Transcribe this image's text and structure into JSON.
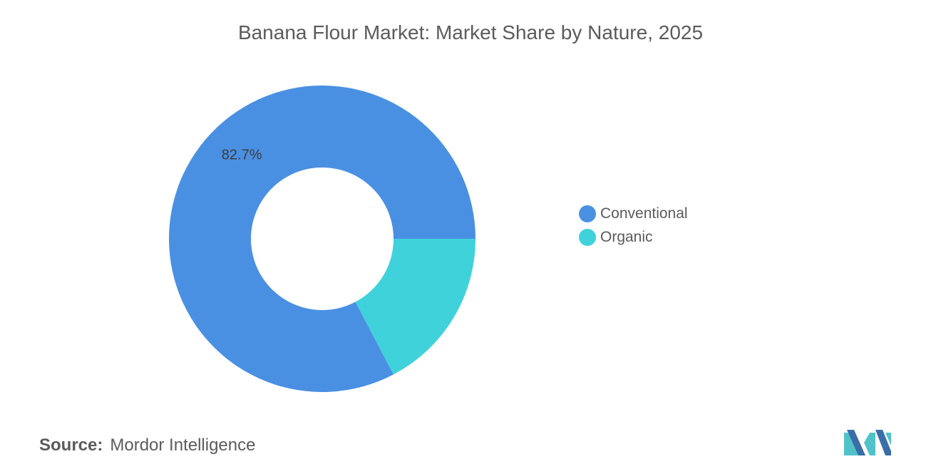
{
  "title": "Banana Flour Market: Market Share by Nature, 2025",
  "chart_data": {
    "type": "pie",
    "variant": "donut",
    "title": "Banana Flour Market: Market Share by Nature, 2025",
    "categories": [
      "Conventional",
      "Organic"
    ],
    "values": [
      82.7,
      17.3
    ],
    "unit": "%",
    "data_labels": [
      "82.7%",
      ""
    ],
    "colors": [
      "#4a90e2",
      "#40d2db"
    ],
    "legend_position": "right"
  },
  "legend": [
    {
      "label": "Conventional",
      "color": "#4a90e2"
    },
    {
      "label": "Organic",
      "color": "#40d2db"
    }
  ],
  "source": {
    "label": "Source:",
    "value": "Mordor Intelligence"
  },
  "logo": {
    "icon": "mordor-intelligence-logo",
    "colors": [
      "#3a6ea8",
      "#4fc3c9"
    ]
  }
}
